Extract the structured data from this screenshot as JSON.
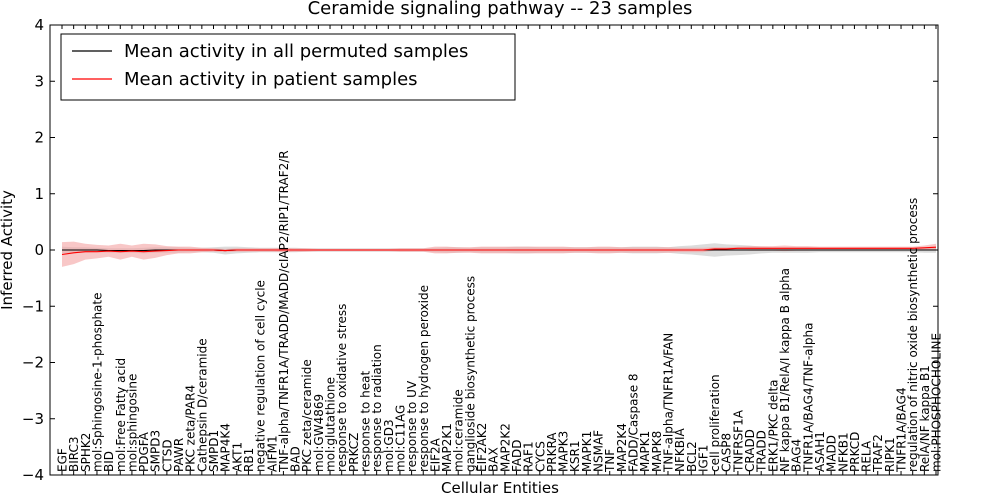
{
  "chart_data": {
    "type": "line",
    "title": "Ceramide signaling pathway -- 23 samples",
    "xlabel": "Cellular Entities",
    "ylabel": "Inferred Activity",
    "ylim": [
      -4,
      4
    ],
    "yticks": [
      "−4",
      "−3",
      "−2",
      "−1",
      "0",
      "1",
      "2",
      "3",
      "4"
    ],
    "grid": false,
    "legend_position": "top-left",
    "categories": [
      "EGF",
      "BIRC3",
      "SPHK2",
      "mol:Sphingosine-1-phosphate",
      "BID",
      "mol:Free Fatty acid",
      "mol:sphingosine",
      "PDGFA",
      "SMPD3",
      "CTSD",
      "PAWR",
      "PKC zeta/PAR4",
      "Cathepsin D/ceramide",
      "SMPD1",
      "MAP4K4",
      "AKT1",
      "RB1",
      "negative regulation of cell cycle",
      "AIFM1",
      "TNF-alpha/TNFR1A/TRADD/MADD/cIAP2/RIP1/TRAF2/R",
      "BAD",
      "PKC zeta/ceramide",
      "mol:GW4869",
      "mol:glutathione",
      "response to oxidative stress",
      "PRKCZ",
      "response to heat",
      "response to radiation",
      "mol:GD3",
      "mol:C11AG",
      "response to UV",
      "response to hydrogen peroxide",
      "EIF2A",
      "MAP2K1",
      "mol:ceramide",
      "ganglioside biosynthetic process",
      "EIF2AK2",
      "BAX",
      "MAP2K2",
      "FADD",
      "RAF1",
      "CYCS",
      "PRKRA",
      "MAPK3",
      "KSR1",
      "MAPK1",
      "NSMAF",
      "TNF",
      "MAP2K4",
      "FADD/Caspase 8",
      "MAPK1",
      "MAPK8",
      "TNF-alpha/TNFR1A/FAN",
      "NFKBIA",
      "BCL2",
      "IGF1",
      "cell proliferation",
      "CASP8",
      "TNFRSF1A",
      "CRADD",
      "TRADD",
      "ERK1/PKC delta",
      "NF kappa B1/RelA/I kappa B alpha",
      "BAG4",
      "TNFR1A/BAG4/TNF-alpha",
      "ASAH1",
      "MADD",
      "NFKB1",
      "PRKCD",
      "RELA",
      "TRAF2",
      "RIPK1",
      "TNFR1A/BAG4",
      "regulation of nitric oxide biosynthetic process",
      "RelA/NF kappa B1",
      "mol:PHOSPHOCHOLINE"
    ],
    "series": [
      {
        "name": "Mean activity in all permuted samples",
        "color": "#000000",
        "band_color": "#bfbfbf",
        "values": [
          0.0,
          0.0,
          0.0,
          0.0,
          -0.01,
          -0.01,
          -0.01,
          -0.01,
          0.0,
          0.0,
          0.0,
          0.0,
          0.0,
          0.0,
          -0.01,
          0.0,
          0.0,
          0.0,
          0.0,
          0.0,
          0.0,
          0.0,
          0.0,
          0.0,
          0.0,
          0.0,
          0.0,
          0.0,
          0.0,
          0.0,
          0.0,
          0.0,
          0.0,
          0.0,
          0.0,
          0.0,
          0.0,
          0.0,
          0.0,
          0.0,
          0.0,
          0.0,
          0.0,
          0.0,
          0.0,
          0.0,
          0.0,
          0.0,
          0.0,
          0.0,
          0.0,
          0.0,
          0.0,
          0.0,
          0.0,
          0.0,
          0.0,
          0.0,
          0.0,
          0.0,
          0.0,
          0.0,
          0.0,
          0.0,
          0.0,
          0.0,
          0.0,
          0.0,
          0.0,
          0.0,
          0.0,
          0.0,
          0.0,
          0.0,
          0.0,
          0.0
        ],
        "spread": [
          0.06,
          0.05,
          0.05,
          0.04,
          0.04,
          0.04,
          0.04,
          0.05,
          0.05,
          0.05,
          0.05,
          0.04,
          0.04,
          0.05,
          0.07,
          0.06,
          0.05,
          0.04,
          0.04,
          0.04,
          0.04,
          0.03,
          0.03,
          0.03,
          0.03,
          0.03,
          0.03,
          0.03,
          0.03,
          0.03,
          0.03,
          0.03,
          0.04,
          0.05,
          0.05,
          0.04,
          0.05,
          0.05,
          0.05,
          0.06,
          0.06,
          0.05,
          0.05,
          0.05,
          0.05,
          0.05,
          0.05,
          0.05,
          0.05,
          0.06,
          0.06,
          0.06,
          0.05,
          0.07,
          0.08,
          0.1,
          0.12,
          0.1,
          0.09,
          0.08,
          0.06,
          0.05,
          0.05,
          0.05,
          0.05,
          0.04,
          0.04,
          0.04,
          0.04,
          0.04,
          0.04,
          0.04,
          0.04,
          0.04,
          0.05,
          0.05
        ]
      },
      {
        "name": "Mean activity in patient samples",
        "color": "#ff0000",
        "band_color": "#f4a1a1",
        "values": [
          -0.08,
          -0.05,
          -0.03,
          -0.03,
          -0.02,
          -0.03,
          -0.02,
          -0.03,
          -0.02,
          -0.01,
          0.0,
          0.0,
          0.0,
          0.0,
          -0.01,
          0.0,
          0.0,
          0.0,
          0.0,
          0.0,
          0.0,
          0.0,
          0.0,
          0.0,
          0.0,
          0.0,
          0.0,
          0.0,
          0.0,
          0.0,
          0.0,
          0.0,
          0.0,
          0.0,
          0.0,
          0.0,
          0.0,
          0.0,
          0.0,
          0.0,
          0.0,
          0.0,
          0.0,
          0.0,
          0.0,
          0.0,
          0.0,
          0.0,
          0.0,
          0.0,
          0.0,
          0.0,
          0.0,
          0.0,
          0.0,
          0.0,
          0.02,
          0.02,
          0.03,
          0.03,
          0.03,
          0.03,
          0.03,
          0.03,
          0.03,
          0.03,
          0.03,
          0.03,
          0.03,
          0.03,
          0.03,
          0.03,
          0.03,
          0.03,
          0.04,
          0.05
        ],
        "spread": [
          0.22,
          0.2,
          0.14,
          0.12,
          0.1,
          0.14,
          0.1,
          0.14,
          0.12,
          0.08,
          0.06,
          0.06,
          0.04,
          0.03,
          0.03,
          0.03,
          0.03,
          0.03,
          0.03,
          0.04,
          0.03,
          0.03,
          0.02,
          0.02,
          0.02,
          0.02,
          0.02,
          0.02,
          0.02,
          0.03,
          0.03,
          0.03,
          0.06,
          0.06,
          0.05,
          0.05,
          0.06,
          0.06,
          0.06,
          0.06,
          0.06,
          0.06,
          0.06,
          0.06,
          0.05,
          0.05,
          0.06,
          0.06,
          0.05,
          0.05,
          0.05,
          0.05,
          0.05,
          0.04,
          0.04,
          0.04,
          0.03,
          0.03,
          0.03,
          0.04,
          0.04,
          0.04,
          0.05,
          0.04,
          0.04,
          0.03,
          0.03,
          0.03,
          0.03,
          0.03,
          0.03,
          0.03,
          0.03,
          0.03,
          0.04,
          0.06
        ]
      }
    ]
  }
}
